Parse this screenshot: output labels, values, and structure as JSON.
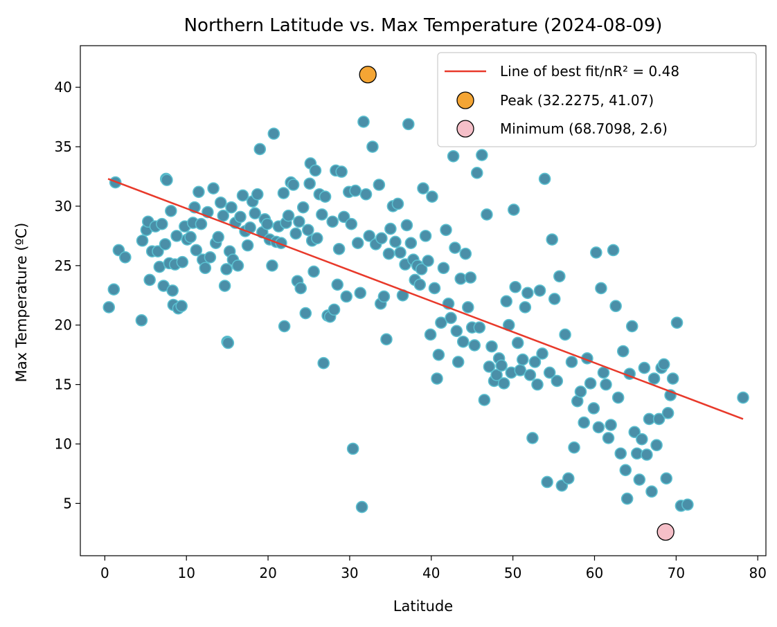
{
  "chart_data": {
    "type": "scatter",
    "title": "Northern Latitude vs. Max Temperature (2024-08-09)",
    "xlabel": "Latitude",
    "ylabel": "Max Temperature (ºC)",
    "xlim": [
      -3,
      81
    ],
    "ylim": [
      0.6,
      43.5
    ],
    "xticks": [
      0,
      10,
      20,
      30,
      40,
      50,
      60,
      70,
      80
    ],
    "yticks": [
      5,
      10,
      15,
      20,
      25,
      30,
      35,
      40
    ],
    "grid": false,
    "legend_position": "top-right",
    "colors": {
      "points_fill": "#4a8fa8",
      "points_edge": "#5bc0d0",
      "fit_line": "#e8392a",
      "peak": "#f4a534",
      "minimum": "#f5bfc8"
    },
    "fit_line": {
      "label": "Line of best fit/nR² = 0.48",
      "x": [
        0.4,
        78.2
      ],
      "y": [
        32.3,
        12.1
      ]
    },
    "peak": {
      "label": "Peak (32.2275, 41.07)",
      "x": 32.2275,
      "y": 41.07
    },
    "minimum": {
      "label": "Minimum (68.7098, 2.6)",
      "x": 68.7098,
      "y": 2.6
    },
    "points": [
      [
        0.5,
        21.5
      ],
      [
        1.1,
        23.0
      ],
      [
        1.3,
        32.0
      ],
      [
        1.7,
        26.3
      ],
      [
        2.5,
        25.7
      ],
      [
        4.5,
        20.4
      ],
      [
        4.6,
        27.1
      ],
      [
        5.1,
        28.0
      ],
      [
        5.3,
        28.7
      ],
      [
        5.5,
        23.8
      ],
      [
        5.8,
        26.2
      ],
      [
        6.2,
        28.3
      ],
      [
        6.5,
        26.2
      ],
      [
        6.7,
        24.9
      ],
      [
        7.0,
        28.5
      ],
      [
        7.2,
        23.3
      ],
      [
        7.4,
        26.8
      ],
      [
        7.5,
        32.3
      ],
      [
        7.6,
        32.2
      ],
      [
        7.9,
        25.2
      ],
      [
        8.1,
        29.6
      ],
      [
        8.3,
        22.9
      ],
      [
        8.4,
        21.7
      ],
      [
        8.6,
        25.1
      ],
      [
        8.8,
        27.5
      ],
      [
        9.0,
        21.4
      ],
      [
        9.4,
        21.6
      ],
      [
        9.5,
        25.3
      ],
      [
        9.8,
        28.3
      ],
      [
        10.1,
        27.2
      ],
      [
        10.5,
        27.4
      ],
      [
        10.8,
        28.6
      ],
      [
        11.0,
        29.9
      ],
      [
        11.2,
        26.3
      ],
      [
        11.5,
        31.2
      ],
      [
        11.8,
        28.5
      ],
      [
        12.0,
        25.5
      ],
      [
        12.3,
        24.8
      ],
      [
        12.6,
        29.5
      ],
      [
        12.9,
        25.7
      ],
      [
        13.3,
        31.5
      ],
      [
        13.6,
        26.9
      ],
      [
        13.9,
        27.4
      ],
      [
        14.2,
        30.3
      ],
      [
        14.5,
        29.2
      ],
      [
        14.7,
        23.3
      ],
      [
        14.9,
        24.7
      ],
      [
        15.0,
        18.6
      ],
      [
        15.1,
        18.5
      ],
      [
        15.3,
        26.2
      ],
      [
        15.5,
        29.9
      ],
      [
        15.7,
        25.5
      ],
      [
        16.0,
        28.6
      ],
      [
        16.3,
        25.0
      ],
      [
        16.6,
        29.1
      ],
      [
        16.9,
        30.9
      ],
      [
        17.2,
        27.9
      ],
      [
        17.5,
        26.7
      ],
      [
        17.8,
        28.2
      ],
      [
        18.1,
        30.4
      ],
      [
        18.4,
        29.4
      ],
      [
        18.7,
        31.0
      ],
      [
        19.0,
        34.8
      ],
      [
        19.3,
        27.8
      ],
      [
        19.6,
        28.9
      ],
      [
        19.9,
        28.5
      ],
      [
        20.2,
        27.2
      ],
      [
        20.5,
        25.0
      ],
      [
        20.7,
        36.1
      ],
      [
        21.0,
        27.0
      ],
      [
        21.3,
        28.3
      ],
      [
        21.6,
        26.9
      ],
      [
        21.9,
        31.1
      ],
      [
        22.0,
        19.9
      ],
      [
        22.2,
        28.6
      ],
      [
        22.5,
        29.2
      ],
      [
        22.8,
        32.0
      ],
      [
        23.1,
        31.8
      ],
      [
        23.4,
        27.7
      ],
      [
        23.6,
        23.7
      ],
      [
        23.8,
        28.7
      ],
      [
        24.0,
        23.1
      ],
      [
        24.3,
        29.9
      ],
      [
        24.6,
        21.0
      ],
      [
        24.9,
        28.0
      ],
      [
        25.1,
        31.9
      ],
      [
        25.2,
        33.6
      ],
      [
        25.4,
        27.1
      ],
      [
        25.6,
        24.5
      ],
      [
        25.8,
        33.0
      ],
      [
        26.0,
        27.3
      ],
      [
        26.3,
        31.0
      ],
      [
        26.6,
        29.3
      ],
      [
        26.8,
        16.8
      ],
      [
        27.0,
        30.8
      ],
      [
        27.3,
        20.8
      ],
      [
        27.6,
        20.7
      ],
      [
        27.9,
        28.7
      ],
      [
        28.1,
        21.3
      ],
      [
        28.3,
        33.0
      ],
      [
        28.5,
        23.4
      ],
      [
        28.7,
        26.4
      ],
      [
        29.0,
        32.9
      ],
      [
        29.3,
        29.1
      ],
      [
        29.6,
        22.4
      ],
      [
        29.9,
        31.2
      ],
      [
        30.2,
        28.5
      ],
      [
        30.4,
        9.6
      ],
      [
        30.7,
        31.3
      ],
      [
        31.0,
        26.9
      ],
      [
        31.3,
        22.7
      ],
      [
        31.5,
        4.7
      ],
      [
        31.7,
        37.1
      ],
      [
        32.0,
        31.0
      ],
      [
        32.4,
        27.5
      ],
      [
        32.8,
        35.0
      ],
      [
        33.2,
        26.8
      ],
      [
        33.6,
        31.8
      ],
      [
        33.8,
        21.8
      ],
      [
        33.9,
        27.3
      ],
      [
        34.2,
        22.4
      ],
      [
        34.5,
        18.8
      ],
      [
        34.8,
        26.0
      ],
      [
        35.0,
        28.1
      ],
      [
        35.3,
        30.0
      ],
      [
        35.6,
        27.0
      ],
      [
        35.9,
        30.2
      ],
      [
        36.2,
        26.1
      ],
      [
        36.5,
        22.5
      ],
      [
        36.8,
        25.1
      ],
      [
        37.0,
        28.4
      ],
      [
        37.2,
        36.9
      ],
      [
        37.5,
        26.9
      ],
      [
        37.8,
        25.5
      ],
      [
        38.0,
        23.8
      ],
      [
        38.3,
        25.0
      ],
      [
        38.6,
        23.4
      ],
      [
        38.8,
        24.7
      ],
      [
        39.0,
        31.5
      ],
      [
        39.3,
        27.5
      ],
      [
        39.6,
        25.4
      ],
      [
        39.9,
        19.2
      ],
      [
        40.1,
        30.8
      ],
      [
        40.4,
        23.1
      ],
      [
        40.7,
        15.5
      ],
      [
        40.9,
        17.5
      ],
      [
        41.2,
        20.2
      ],
      [
        41.5,
        24.8
      ],
      [
        41.8,
        28.0
      ],
      [
        42.1,
        21.8
      ],
      [
        42.4,
        20.6
      ],
      [
        42.7,
        34.2
      ],
      [
        42.9,
        26.5
      ],
      [
        43.1,
        19.5
      ],
      [
        43.3,
        16.9
      ],
      [
        43.6,
        23.9
      ],
      [
        43.9,
        18.6
      ],
      [
        44.2,
        26.0
      ],
      [
        44.5,
        21.5
      ],
      [
        44.8,
        24.0
      ],
      [
        45.0,
        19.8
      ],
      [
        45.3,
        18.3
      ],
      [
        45.6,
        32.8
      ],
      [
        45.9,
        19.8
      ],
      [
        46.2,
        34.3
      ],
      [
        46.5,
        13.7
      ],
      [
        46.8,
        29.3
      ],
      [
        47.1,
        16.5
      ],
      [
        47.4,
        18.2
      ],
      [
        47.7,
        15.3
      ],
      [
        48.0,
        15.8
      ],
      [
        48.3,
        17.2
      ],
      [
        48.6,
        16.6
      ],
      [
        48.9,
        15.1
      ],
      [
        49.2,
        22.0
      ],
      [
        49.5,
        20.0
      ],
      [
        49.8,
        16.0
      ],
      [
        50.1,
        29.7
      ],
      [
        50.3,
        23.2
      ],
      [
        50.6,
        18.5
      ],
      [
        50.9,
        16.2
      ],
      [
        51.2,
        17.1
      ],
      [
        51.5,
        21.5
      ],
      [
        51.8,
        22.7
      ],
      [
        52.1,
        15.8
      ],
      [
        52.4,
        10.5
      ],
      [
        52.7,
        16.9
      ],
      [
        53.0,
        15.0
      ],
      [
        53.3,
        22.9
      ],
      [
        53.6,
        17.6
      ],
      [
        53.9,
        32.3
      ],
      [
        54.2,
        6.8
      ],
      [
        54.5,
        16.0
      ],
      [
        54.8,
        27.2
      ],
      [
        55.1,
        22.2
      ],
      [
        55.4,
        15.3
      ],
      [
        55.7,
        24.1
      ],
      [
        56.0,
        6.5
      ],
      [
        56.4,
        19.2
      ],
      [
        56.8,
        7.1
      ],
      [
        57.2,
        16.9
      ],
      [
        57.5,
        9.7
      ],
      [
        57.9,
        13.6
      ],
      [
        58.3,
        14.4
      ],
      [
        58.7,
        11.8
      ],
      [
        59.1,
        17.2
      ],
      [
        59.5,
        15.1
      ],
      [
        59.9,
        13.0
      ],
      [
        60.2,
        26.1
      ],
      [
        60.5,
        11.4
      ],
      [
        60.8,
        23.1
      ],
      [
        61.1,
        16.0
      ],
      [
        61.4,
        15.0
      ],
      [
        61.7,
        10.5
      ],
      [
        62.0,
        11.6
      ],
      [
        62.3,
        26.3
      ],
      [
        62.6,
        21.6
      ],
      [
        62.9,
        13.9
      ],
      [
        63.2,
        9.2
      ],
      [
        63.5,
        17.8
      ],
      [
        63.8,
        7.8
      ],
      [
        64.0,
        5.4
      ],
      [
        64.3,
        15.9
      ],
      [
        64.6,
        19.9
      ],
      [
        64.9,
        11.0
      ],
      [
        65.2,
        9.2
      ],
      [
        65.5,
        7.0
      ],
      [
        65.8,
        10.4
      ],
      [
        66.1,
        16.4
      ],
      [
        66.4,
        9.1
      ],
      [
        66.7,
        12.1
      ],
      [
        67.0,
        6.0
      ],
      [
        67.3,
        15.5
      ],
      [
        67.6,
        9.9
      ],
      [
        67.9,
        12.1
      ],
      [
        68.2,
        16.4
      ],
      [
        68.5,
        16.7
      ],
      [
        68.8,
        7.1
      ],
      [
        69.0,
        12.6
      ],
      [
        69.3,
        14.1
      ],
      [
        69.6,
        15.5
      ],
      [
        70.1,
        20.2
      ],
      [
        70.6,
        4.8
      ],
      [
        71.4,
        4.9
      ],
      [
        78.2,
        13.9
      ]
    ]
  }
}
